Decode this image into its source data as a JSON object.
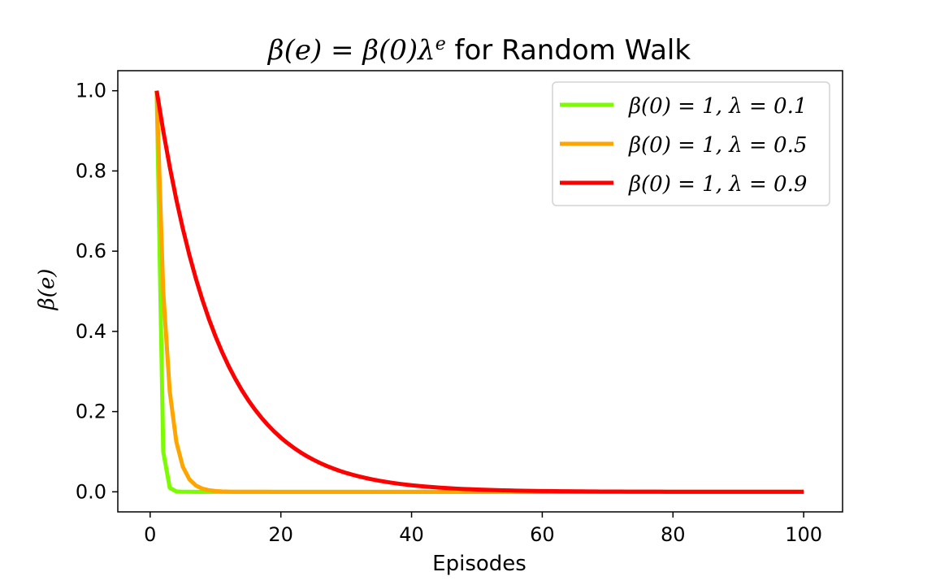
{
  "chart_data": {
    "type": "line",
    "title": "β(e) = β(0)λ^e for Random Walk",
    "title_parts": {
      "lead": "β(e) = β(0)λ",
      "superscript": "e",
      "tail": " for Random Walk"
    },
    "xlabel": "Episodes",
    "ylabel": "β(e)",
    "xlim": [
      -4.95,
      105.95
    ],
    "ylim": [
      -0.05,
      1.05
    ],
    "x_ticks": [
      0,
      20,
      40,
      60,
      80,
      100
    ],
    "x_tick_labels": [
      "0",
      "20",
      "40",
      "60",
      "80",
      "100"
    ],
    "y_ticks": [
      0.0,
      0.2,
      0.4,
      0.6,
      0.8,
      1.0
    ],
    "y_tick_labels": [
      "0.0",
      "0.2",
      "0.4",
      "0.6",
      "0.8",
      "1.0"
    ],
    "grid": false,
    "legend_position": "top-right",
    "x_start": 1,
    "x_end": 100,
    "series": [
      {
        "name": "β(0) = 1, λ = 0.1",
        "beta0": 1,
        "lambda": 0.1,
        "color": "#7CFC00"
      },
      {
        "name": "β(0) = 1, λ = 0.5",
        "beta0": 1,
        "lambda": 0.5,
        "color": "#FFA500"
      },
      {
        "name": "β(0) = 1, λ = 0.9",
        "beta0": 1,
        "lambda": 0.9,
        "color": "#FF0000"
      }
    ]
  }
}
